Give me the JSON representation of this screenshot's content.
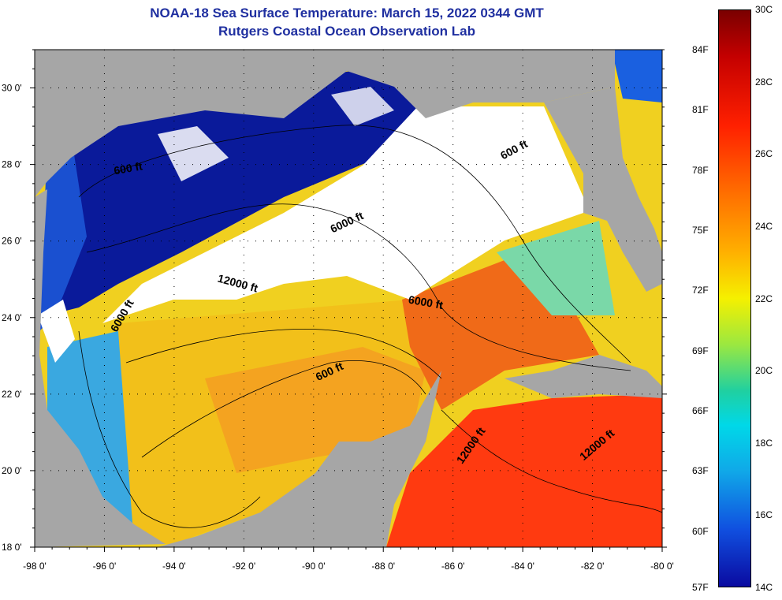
{
  "title": {
    "line1": "NOAA-18 Sea Surface Temperature:  March 15, 2022 0344 GMT",
    "line2": "Rutgers Coastal Ocean Observation Lab"
  },
  "axes": {
    "lat_ticks": [
      "30 0'",
      "28 0'",
      "26 0'",
      "24 0'",
      "22 0'",
      "20 0'",
      "18 0'"
    ],
    "lon_ticks": [
      "-98 0'",
      "-96 0'",
      "-94 0'",
      "-92 0'",
      "-90 0'",
      "-88 0'",
      "-86 0'",
      "-84 0'",
      "-82 0'",
      "-80 0'"
    ],
    "lat_range": [
      18,
      31
    ],
    "lon_range": [
      -98,
      -80
    ]
  },
  "contour_labels": [
    {
      "text": "600 ft",
      "lon": -84.2,
      "lat": 28.3
    },
    {
      "text": "600 ft",
      "lon": -95.3,
      "lat": 27.8
    },
    {
      "text": "6000 ft",
      "lon": -89.0,
      "lat": 26.4
    },
    {
      "text": "12000 ft",
      "lon": -92.2,
      "lat": 24.8
    },
    {
      "text": "6000 ft",
      "lon": -95.4,
      "lat": 24.0
    },
    {
      "text": "6000 ft",
      "lon": -86.8,
      "lat": 24.3
    },
    {
      "text": "600 ft",
      "lon": -89.5,
      "lat": 22.5
    },
    {
      "text": "12000 ft",
      "lon": -85.4,
      "lat": 20.6
    },
    {
      "text": "12000 ft",
      "lon": -81.8,
      "lat": 20.6
    }
  ],
  "legend": {
    "fahrenheit": [
      "84F",
      "81F",
      "78F",
      "75F",
      "72F",
      "69F",
      "66F",
      "63F",
      "60F",
      "57F"
    ],
    "celsius": [
      "30C",
      "28C",
      "26C",
      "24C",
      "22C",
      "20C",
      "18C",
      "16C",
      "14C"
    ]
  },
  "colors": {
    "land": "#a6a6a6",
    "cloud": "#ffffff",
    "title": "#1f2fa0",
    "cold": "#0a1a9a",
    "cool": "#1c70e0",
    "mild": "#6ad0c0",
    "warm": "#f0d020",
    "orange": "#f58a20",
    "hot": "#ff3a10"
  }
}
